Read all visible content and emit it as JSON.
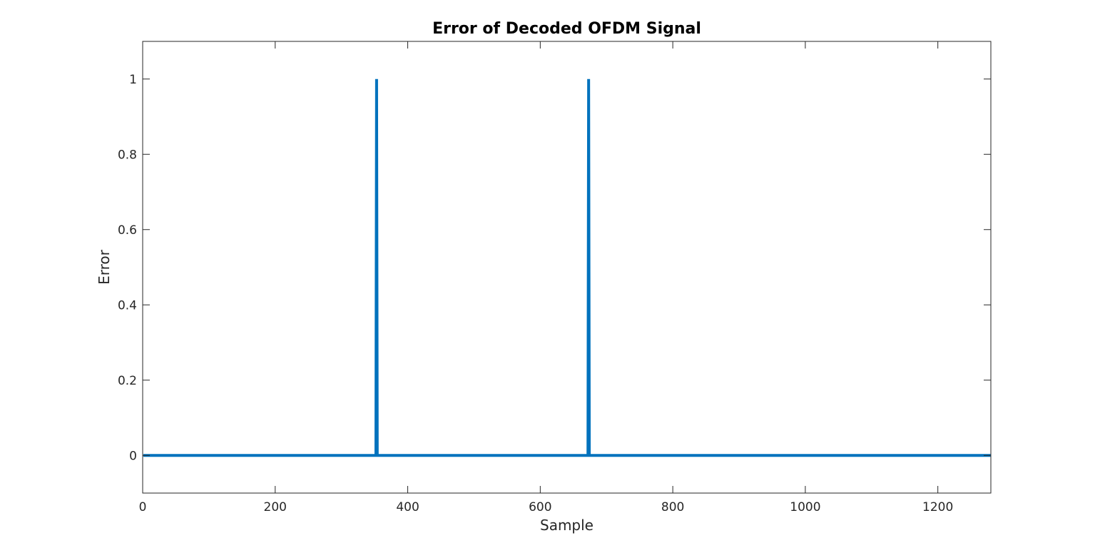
{
  "chart_data": {
    "type": "line",
    "title": "Error of Decoded OFDM Signal",
    "xlabel": "Sample",
    "ylabel": "Error",
    "xlim": [
      0,
      1280
    ],
    "ylim": [
      -0.1,
      1.1
    ],
    "xticks": [
      0,
      200,
      400,
      600,
      800,
      1000,
      1200
    ],
    "xtick_labels": [
      "0",
      "200",
      "400",
      "600",
      "800",
      "1000",
      "1200"
    ],
    "yticks": [
      0,
      0.2,
      0.4,
      0.6,
      0.8,
      1
    ],
    "ytick_labels": [
      "0",
      "0.2",
      "0.4",
      "0.6",
      "0.8",
      "1"
    ],
    "grid": false,
    "box": true,
    "series": [
      {
        "color": "#0072BD",
        "x": [
          1,
          352,
          353,
          354,
          672,
          673,
          674,
          1280
        ],
        "y": [
          0,
          0,
          1,
          0,
          0,
          1,
          0,
          0
        ]
      }
    ]
  }
}
